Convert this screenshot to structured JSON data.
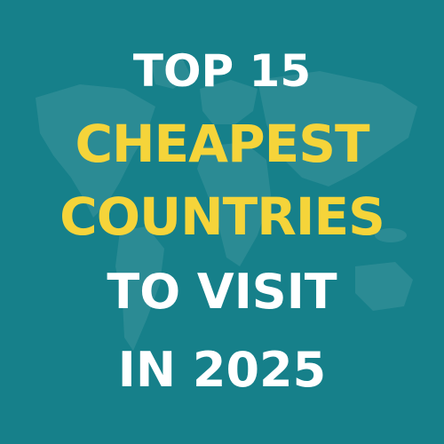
{
  "poster": {
    "line1": "TOP 15",
    "line2": "CHEAPEST",
    "line3": "COUNTRIES",
    "line4": "TO VISIT",
    "line5": "IN 2025"
  },
  "colors": {
    "background": "#16808a",
    "accent": "#f5d43a",
    "text": "#ffffff"
  }
}
